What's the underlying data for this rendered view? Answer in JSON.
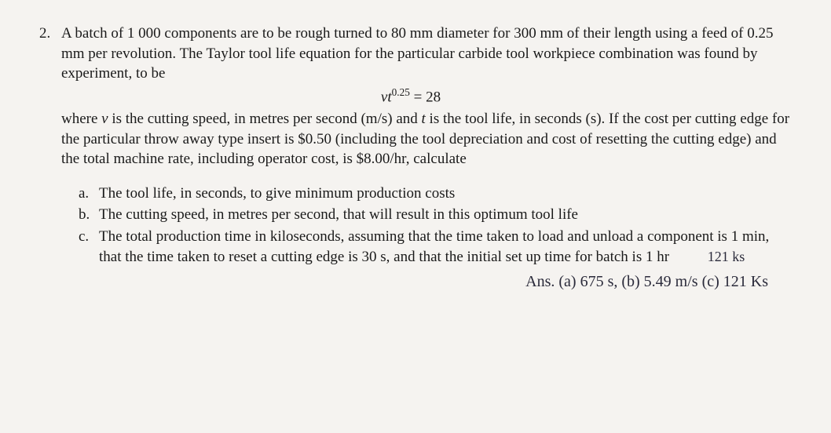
{
  "problem": {
    "number": "2.",
    "para1": "A batch of 1 000 components are to be rough turned to 80 mm diameter for 300 mm of their length using a feed of 0.25 mm per revolution. The Taylor tool life equation for the particular carbide tool workpiece combination was found by experiment, to be",
    "equation": {
      "lhs_var": "vt",
      "exp": "0.25",
      "rhs": " = 28"
    },
    "para2_a": "where ",
    "para2_v": "v",
    "para2_b": " is the cutting speed, in metres per second (m/s) and ",
    "para2_t": "t",
    "para2_c": " is the tool life, in seconds (s). If the cost per cutting edge for the particular throw away type insert is $0.50 (including the tool depreciation and cost of resetting the cutting edge) and the total machine rate, including operator cost, is $8.00/hr, calculate",
    "subs": {
      "a": {
        "let": "a.",
        "txt": "The tool life, in seconds, to give minimum production costs"
      },
      "b": {
        "let": "b.",
        "txt": "The cutting speed, in metres per second, that will result in this optimum tool life"
      },
      "c": {
        "let": "c.",
        "txt": "The total production time in kiloseconds, assuming that the time taken to load and unload a component is 1 min, that the time taken to reset a cutting edge is 30 s, and that the initial set up time for batch is 1 hr"
      }
    }
  },
  "handwritten": {
    "margin": "121 ks",
    "answers": "Ans. (a) 675 s, (b) 5.49 m/s (c) 121 Ks"
  }
}
